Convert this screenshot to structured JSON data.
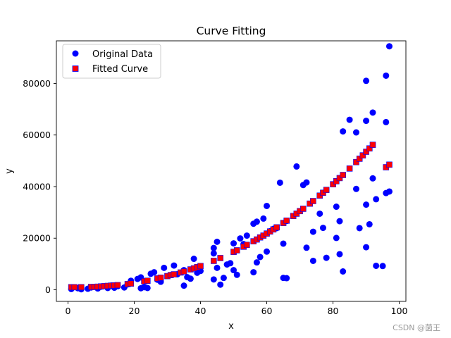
{
  "chart_data": {
    "type": "scatter",
    "title": "Curve Fitting",
    "xlabel": "x",
    "ylabel": "y",
    "xlim": [
      -3.5,
      102
    ],
    "ylim": [
      -4500,
      96500
    ],
    "xticks": [
      0,
      20,
      40,
      60,
      80,
      100
    ],
    "yticks": [
      0,
      20000,
      40000,
      60000,
      80000
    ],
    "grid": false,
    "legend_position": "top-left",
    "series": [
      {
        "name": "Original Data",
        "marker": "circle",
        "color": "#0000ff",
        "points": [
          [
            1,
            300
          ],
          [
            3,
            600
          ],
          [
            4,
            200
          ],
          [
            6,
            400
          ],
          [
            7,
            900
          ],
          [
            9,
            500
          ],
          [
            10,
            1200
          ],
          [
            12,
            700
          ],
          [
            13,
            1600
          ],
          [
            14,
            800
          ],
          [
            15,
            1400
          ],
          [
            17,
            900
          ],
          [
            18,
            2100
          ],
          [
            19,
            3500
          ],
          [
            21,
            4200
          ],
          [
            22,
            600
          ],
          [
            22,
            4800
          ],
          [
            23,
            1000
          ],
          [
            24,
            700
          ],
          [
            25,
            6200
          ],
          [
            26,
            6800
          ],
          [
            27,
            3900
          ],
          [
            28,
            3100
          ],
          [
            29,
            8500
          ],
          [
            31,
            5700
          ],
          [
            32,
            9400
          ],
          [
            33,
            6000
          ],
          [
            35,
            1600
          ],
          [
            35,
            7600
          ],
          [
            36,
            4900
          ],
          [
            37,
            4300
          ],
          [
            38,
            12000
          ],
          [
            39,
            6600
          ],
          [
            40,
            7300
          ],
          [
            44,
            4000
          ],
          [
            44,
            14100
          ],
          [
            44,
            16200
          ],
          [
            45,
            8500
          ],
          [
            45,
            18600
          ],
          [
            46,
            2000
          ],
          [
            47,
            4600
          ],
          [
            48,
            9800
          ],
          [
            49,
            10300
          ],
          [
            50,
            18000
          ],
          [
            50,
            7600
          ],
          [
            51,
            5800
          ],
          [
            52,
            19900
          ],
          [
            53,
            17700
          ],
          [
            54,
            21000
          ],
          [
            56,
            6800
          ],
          [
            56,
            25600
          ],
          [
            57,
            26400
          ],
          [
            57,
            10600
          ],
          [
            58,
            12700
          ],
          [
            59,
            27600
          ],
          [
            60,
            32500
          ],
          [
            60,
            14800
          ],
          [
            61,
            22700
          ],
          [
            62,
            23600
          ],
          [
            63,
            23900
          ],
          [
            64,
            41500
          ],
          [
            65,
            4600
          ],
          [
            65,
            17900
          ],
          [
            66,
            4500
          ],
          [
            66,
            26700
          ],
          [
            69,
            47800
          ],
          [
            71,
            40600
          ],
          [
            72,
            41600
          ],
          [
            72,
            16300
          ],
          [
            74,
            11200
          ],
          [
            74,
            22500
          ],
          [
            76,
            29500
          ],
          [
            77,
            24000
          ],
          [
            78,
            12400
          ],
          [
            81,
            20100
          ],
          [
            81,
            32200
          ],
          [
            82,
            26600
          ],
          [
            82,
            13800
          ],
          [
            83,
            7100
          ],
          [
            83,
            61400
          ],
          [
            85,
            65900
          ],
          [
            87,
            61000
          ],
          [
            87,
            39100
          ],
          [
            88,
            23900
          ],
          [
            90,
            81000
          ],
          [
            90,
            65500
          ],
          [
            90,
            33000
          ],
          [
            90,
            16500
          ],
          [
            91,
            25400
          ],
          [
            92,
            68700
          ],
          [
            92,
            43200
          ],
          [
            93,
            9300
          ],
          [
            93,
            35100
          ],
          [
            95,
            9200
          ],
          [
            96,
            83000
          ],
          [
            96,
            65000
          ],
          [
            96,
            37500
          ],
          [
            97,
            38100
          ],
          [
            97,
            94400
          ]
        ]
      },
      {
        "name": "Fitted Curve",
        "marker": "square",
        "color": "#ff0000",
        "edgecolor": "#0000ff",
        "x": [
          1,
          2,
          4,
          7,
          8,
          9,
          10,
          11,
          12,
          13,
          14,
          15,
          18,
          19,
          23,
          24,
          27,
          28,
          30,
          31,
          32,
          34,
          35,
          37,
          38,
          39,
          40,
          44,
          46,
          50,
          51,
          53,
          54,
          56,
          57,
          58,
          59,
          60,
          61,
          62,
          63,
          65,
          66,
          68,
          69,
          70,
          71,
          73,
          74,
          76,
          77,
          78,
          80,
          81,
          82,
          83,
          85,
          87,
          88,
          89,
          90,
          91,
          92,
          96,
          97
        ],
        "y": [
          1000,
          1000,
          1000,
          1100,
          1100,
          1200,
          1300,
          1400,
          1500,
          1600,
          1700,
          1800,
          2200,
          2400,
          3300,
          3500,
          4400,
          4700,
          5300,
          5700,
          6000,
          6700,
          7100,
          7900,
          8300,
          8800,
          9200,
          11200,
          12300,
          14700,
          15300,
          16700,
          17400,
          18800,
          19500,
          20300,
          21000,
          21800,
          22600,
          23400,
          24200,
          25900,
          26800,
          28600,
          29500,
          30500,
          31400,
          33400,
          34400,
          36500,
          37600,
          38700,
          40900,
          42100,
          43300,
          44500,
          47000,
          49500,
          50800,
          52100,
          53500,
          54800,
          56200,
          47500,
          48500
        ]
      }
    ]
  },
  "watermark": "CSDN @菌王"
}
